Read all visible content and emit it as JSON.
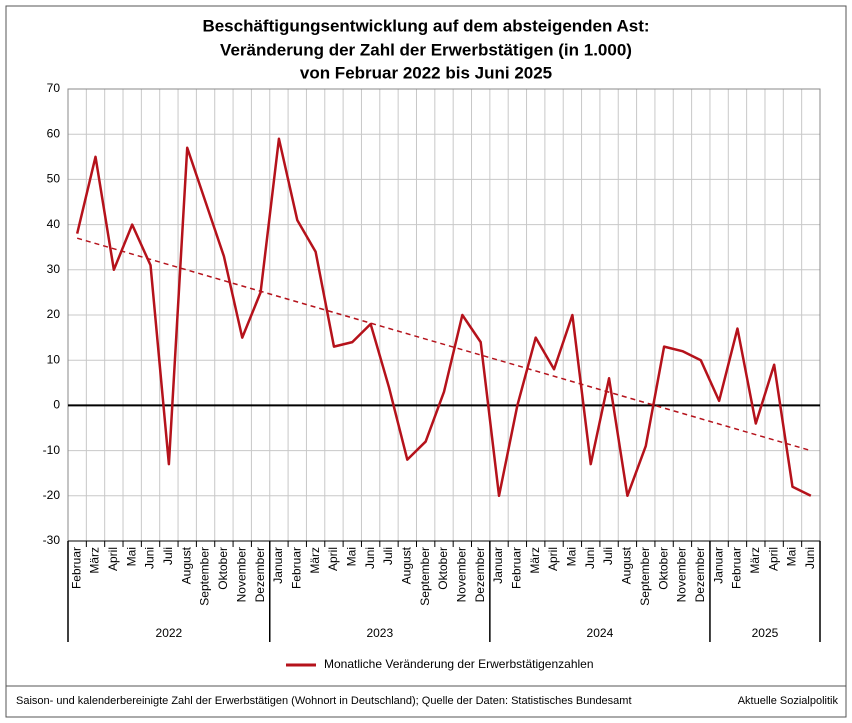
{
  "chart_data": {
    "type": "line",
    "title": [
      "Beschäftigungsentwicklung auf dem absteigenden Ast:",
      "Veränderung der Zahl der Erwerbstätigen (in 1.000)",
      "von Februar 2022 bis Juni 2025"
    ],
    "categories": [
      "Februar",
      "März",
      "April",
      "Mai",
      "Juni",
      "Juli",
      "August",
      "September",
      "Oktober",
      "November",
      "Dezember",
      "Januar",
      "Februar",
      "März",
      "April",
      "Mai",
      "Juni",
      "Juli",
      "August",
      "September",
      "Oktober",
      "November",
      "Dezember",
      "Januar",
      "Februar",
      "März",
      "April",
      "Mai",
      "Juni",
      "Juli",
      "August",
      "September",
      "Oktober",
      "November",
      "Dezember",
      "Januar",
      "Februar",
      "März",
      "April",
      "Mai",
      "Juni"
    ],
    "years": [
      "2022",
      "2023",
      "2024",
      "2025"
    ],
    "series": [
      {
        "name": "Monatliche Veränderung der Erwerbstätigenzahlen",
        "color": "#b5121b",
        "values": [
          38,
          55,
          30,
          40,
          31,
          -13,
          57,
          45,
          33,
          15,
          25,
          59,
          41,
          34,
          13,
          14,
          18,
          4,
          -12,
          -8,
          3,
          20,
          14,
          -20,
          0,
          15,
          8,
          20,
          -13,
          6,
          -20,
          -9,
          13,
          12,
          10,
          1,
          17,
          -4,
          9,
          -18,
          -20
        ]
      }
    ],
    "trend": {
      "color": "#b5121b",
      "values": [
        37,
        -10
      ]
    },
    "ylim": [
      -30,
      70
    ],
    "yticks": [
      -30,
      -20,
      -10,
      0,
      10,
      20,
      30,
      40,
      50,
      60,
      70
    ],
    "grid": true,
    "legend": "bottom",
    "footnote": "Saison- und kalenderbereinigte Zahl der Erwerbstätigen (Wohnort in Deutschland); Quelle der Daten: Statistisches Bundesamt",
    "source": "Aktuelle Sozialpolitik"
  }
}
